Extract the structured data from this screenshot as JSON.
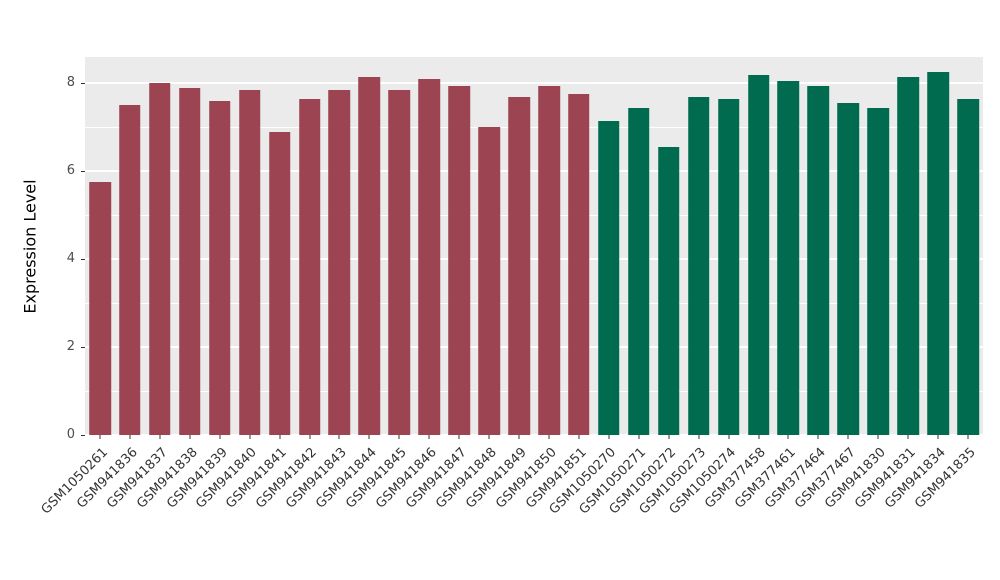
{
  "chart_data": {
    "type": "bar",
    "title": "",
    "xlabel": "",
    "ylabel": "Expression Level",
    "ylim": [
      0,
      8.6
    ],
    "y_ticks": [
      0,
      2,
      4,
      6,
      8
    ],
    "y_minor": [
      1,
      3,
      5,
      7
    ],
    "grid": true,
    "legend": "none",
    "panel_background": "#ebebeb",
    "gridline_color": "#ffffff",
    "categories": [
      "GSM1050261",
      "GSM941836",
      "GSM941837",
      "GSM941838",
      "GSM941839",
      "GSM941840",
      "GSM941841",
      "GSM941842",
      "GSM941843",
      "GSM941844",
      "GSM941845",
      "GSM941846",
      "GSM941847",
      "GSM941848",
      "GSM941849",
      "GSM941850",
      "GSM941851",
      "GSM1050270",
      "GSM1050271",
      "GSM1050272",
      "GSM1050273",
      "GSM1050274",
      "GSM377458",
      "GSM377461",
      "GSM377464",
      "GSM377467",
      "GSM941830",
      "GSM941831",
      "GSM941834",
      "GSM941835"
    ],
    "values": [
      5.75,
      7.5,
      8.0,
      7.9,
      7.6,
      7.85,
      6.9,
      7.65,
      7.85,
      8.15,
      7.85,
      8.1,
      7.95,
      7.0,
      7.7,
      7.95,
      7.75,
      7.15,
      7.45,
      6.55,
      7.7,
      7.65,
      8.2,
      8.05,
      7.95,
      7.55,
      7.45,
      8.15,
      8.25,
      7.65
    ],
    "groups": [
      {
        "name": "group-1",
        "color": "#9d4452",
        "count": 17
      },
      {
        "name": "group-2",
        "color": "#006b4e",
        "count": 13
      }
    ]
  }
}
